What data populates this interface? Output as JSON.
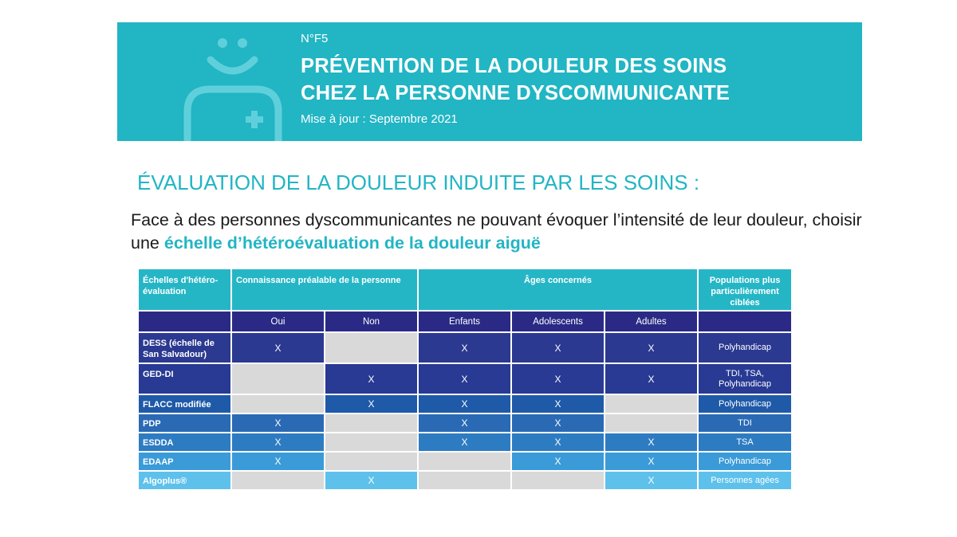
{
  "banner": {
    "number": "N°F5",
    "title_line1": "PRÉVENTION DE LA DOULEUR DES SOINS",
    "title_line2": "CHEZ LA PERSONNE DYSCOMMUNICANTE",
    "update": "Mise à jour : Septembre 2021",
    "logo_icon": "smiling-caregiver-icon",
    "accent_color": "#22b5c4"
  },
  "section": {
    "heading": "ÉVALUATION DE LA DOULEUR INDUITE PAR LES SOINS :",
    "intro_text": "Face à des personnes dyscommunicantes ne pouvant évoquer l’intensité de leur douleur, choisir une ",
    "intro_accent": "échelle d’hétéroévaluation de la douleur aiguë"
  },
  "table": {
    "header_scale": "Échelles d'hétéro-évaluation",
    "header_knowledge": "Connaissance préalable de la personne",
    "header_ages": "Âges concernés",
    "header_populations": "Populations plus particulièrement ciblées",
    "sub_oui": "Oui",
    "sub_non": "Non",
    "sub_enfants": "Enfants",
    "sub_adolescents": "Adolescents",
    "sub_adultes": "Adultes",
    "rows": [
      {
        "name": "DESS (échelle de San Salvadour)",
        "oui": "X",
        "non": "",
        "enfants": "X",
        "adolescents": "X",
        "adultes": "X",
        "population": "Polyhandicap"
      },
      {
        "name": "GED-DI",
        "oui": "",
        "non": "X",
        "enfants": "X",
        "adolescents": "X",
        "adultes": "X",
        "population": "TDI, TSA, Polyhandicap"
      },
      {
        "name": "FLACC modifiée",
        "oui": "",
        "non": "X",
        "enfants": "X",
        "adolescents": "X",
        "adultes": "",
        "population": "Polyhandicap"
      },
      {
        "name": "PDP",
        "oui": "X",
        "non": "",
        "enfants": "X",
        "adolescents": "X",
        "adultes": "",
        "population": "TDI"
      },
      {
        "name": "ESDDA",
        "oui": "X",
        "non": "",
        "enfants": "X",
        "adolescents": "X",
        "adultes": "X",
        "population": "TSA"
      },
      {
        "name": "EDAAP",
        "oui": "X",
        "non": "",
        "enfants": "",
        "adolescents": "X",
        "adultes": "X",
        "population": "Polyhandicap"
      },
      {
        "name": "Algoplus®",
        "oui": "",
        "non": "X",
        "enfants": "",
        "adolescents": "",
        "adultes": "X",
        "population": "Personnes agées"
      }
    ]
  }
}
